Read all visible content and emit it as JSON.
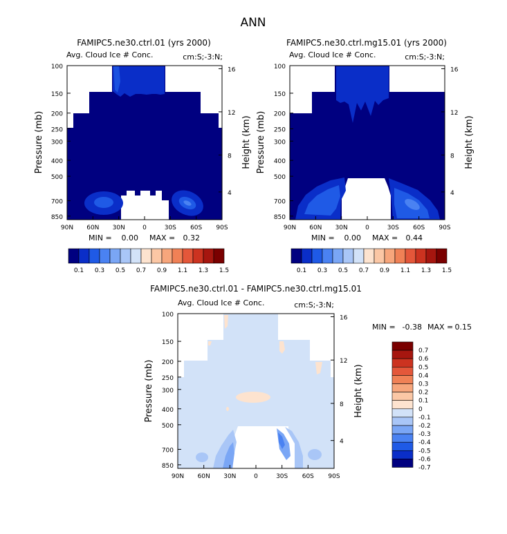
{
  "suptitle": "ANN",
  "chart_data": [
    {
      "type": "heatmap",
      "title": "FAMIPC5.ne30.ctrl.01 (yrs 2000)",
      "subtitle_left": "Avg. Cloud Ice # Conc.",
      "subtitle_right": "cm:S;-3:N;",
      "ylabel": "Pressure (mb)",
      "ylabel_right": "Height (km)",
      "x_ticks": [
        "90N",
        "60N",
        "30N",
        "0",
        "30S",
        "60S",
        "90S"
      ],
      "y_ticks": [
        "100",
        "150",
        "200",
        "250",
        "300",
        "400",
        "500",
        "700",
        "850"
      ],
      "height_ticks": [
        "16",
        "12",
        "8",
        "4"
      ],
      "stats": {
        "min_label": "MIN =",
        "min": "0.00",
        "max_label": "MAX =",
        "max": "0.32"
      },
      "colorbar_labels": [
        "0.1",
        "0.3",
        "0.5",
        "0.7",
        "0.9",
        "1.1",
        "1.3",
        "1.5"
      ],
      "colors": [
        "#000080",
        "#0a2ec8",
        "#1f5ae6",
        "#4a82f2",
        "#7aa6f5",
        "#a9c6f7",
        "#d2e2f8",
        "#fde3cf",
        "#fbc7a5",
        "#f7a67c",
        "#f08156",
        "#e4573a",
        "#cc3320",
        "#a6160f",
        "#7a0000"
      ]
    },
    {
      "type": "heatmap",
      "title": "FAMIPC5.ne30.ctrl.mg15.01 (yrs 2000)",
      "subtitle_left": "Avg. Cloud Ice # Conc.",
      "subtitle_right": "cm:S;-3:N;",
      "ylabel": "Pressure (mb)",
      "ylabel_right": "Height (km)",
      "x_ticks": [
        "90N",
        "60N",
        "30N",
        "0",
        "30S",
        "60S",
        "90S"
      ],
      "y_ticks": [
        "100",
        "150",
        "200",
        "250",
        "300",
        "400",
        "500",
        "700",
        "850"
      ],
      "height_ticks": [
        "16",
        "12",
        "8",
        "4"
      ],
      "stats": {
        "min_label": "MIN =",
        "min": "0.00",
        "max_label": "MAX =",
        "max": "0.44"
      },
      "colorbar_labels": [
        "0.1",
        "0.3",
        "0.5",
        "0.7",
        "0.9",
        "1.1",
        "1.3",
        "1.5"
      ]
    },
    {
      "type": "heatmap",
      "title": "FAMIPC5.ne30.ctrl.01 - FAMIPC5.ne30.ctrl.mg15.01",
      "subtitle_left": "Avg. Cloud Ice # Conc.",
      "subtitle_right": "cm:S;-3:N;",
      "ylabel": "Pressure (mb)",
      "ylabel_right": "Height (km)",
      "x_ticks": [
        "90N",
        "60N",
        "30N",
        "0",
        "30S",
        "60S",
        "90S"
      ],
      "y_ticks": [
        "100",
        "150",
        "200",
        "250",
        "300",
        "400",
        "500",
        "700",
        "850"
      ],
      "height_ticks": [
        "16",
        "12",
        "8",
        "4"
      ],
      "stats": {
        "min_label": "MIN =",
        "min": "-0.38",
        "max_label": "MAX =",
        "max": "0.15"
      },
      "colorbar_labels": [
        "0.7",
        "0.6",
        "0.5",
        "0.4",
        "0.3",
        "0.2",
        "0.1",
        "0",
        "-0.1",
        "-0.2",
        "-0.3",
        "-0.4",
        "-0.5",
        "-0.6",
        "-0.7"
      ],
      "colors": [
        "#7a0000",
        "#a6160f",
        "#cc3320",
        "#e4573a",
        "#f08156",
        "#f7a67c",
        "#fbc7a5",
        "#fde3cf",
        "#d2e2f8",
        "#a9c6f7",
        "#7aa6f5",
        "#4a82f2",
        "#1f5ae6",
        "#0a2ec8",
        "#000080"
      ]
    }
  ]
}
